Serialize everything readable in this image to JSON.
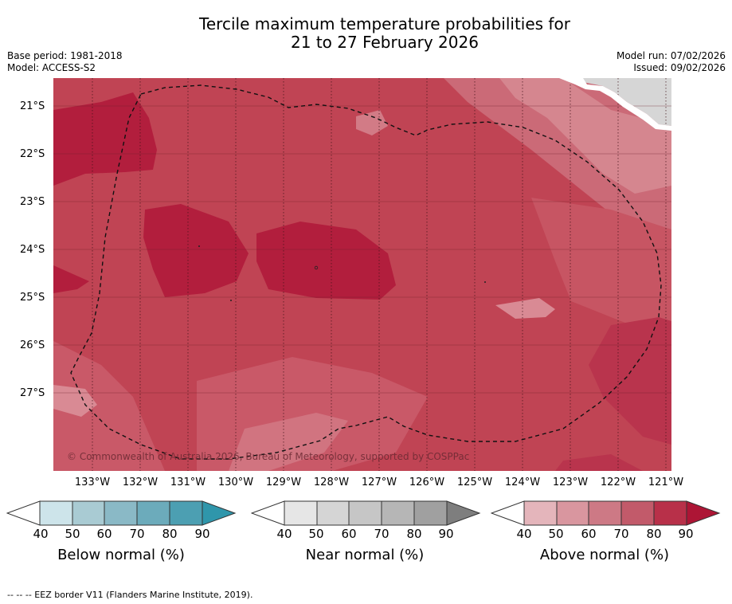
{
  "title_line1": "Tercile maximum temperature probabilities for",
  "title_line2": "21 to 27 February 2026",
  "base_period": "Base period: 1981-2018",
  "model": "Model: ACCESS-S2",
  "model_run": "Model run: 07/02/2026",
  "issued": "Issued: 09/02/2026",
  "latitudes": [
    "21°S",
    "22°S",
    "23°S",
    "24°S",
    "25°S",
    "26°S",
    "27°S"
  ],
  "longitudes": [
    "133°W",
    "132°W",
    "131°W",
    "130°W",
    "129°W",
    "128°W",
    "127°W",
    "126°W",
    "125°W",
    "124°W",
    "123°W",
    "122°W",
    "121°W"
  ],
  "copyright": "© Commonwealth of Australia 2026, Bureau of Meteorology, supported by COSPPac",
  "colorbars": [
    {
      "label": "Below normal (%)",
      "ticks": [
        "40",
        "50",
        "60",
        "70",
        "80",
        "90"
      ],
      "colors": [
        "#cde4ea",
        "#a9cbd3",
        "#8ab9c6",
        "#6cabbb",
        "#4c9fb2",
        "#2f96ab"
      ]
    },
    {
      "label": "Near normal (%)",
      "ticks": [
        "40",
        "50",
        "60",
        "70",
        "80",
        "90"
      ],
      "colors": [
        "#e6e6e6",
        "#d5d5d5",
        "#c6c6c6",
        "#b6b6b6",
        "#a0a0a0",
        "#7e7e7e"
      ]
    },
    {
      "label": "Above normal (%)",
      "ticks": [
        "40",
        "50",
        "60",
        "70",
        "80",
        "90"
      ],
      "colors": [
        "#e4b5bb",
        "#d9969f",
        "#cd7985",
        "#c25a6a",
        "#b83049",
        "#ad1535"
      ]
    }
  ],
  "footer": "--  --  -- EEZ border V11 (Flanders Marine Institute, 2019)."
}
